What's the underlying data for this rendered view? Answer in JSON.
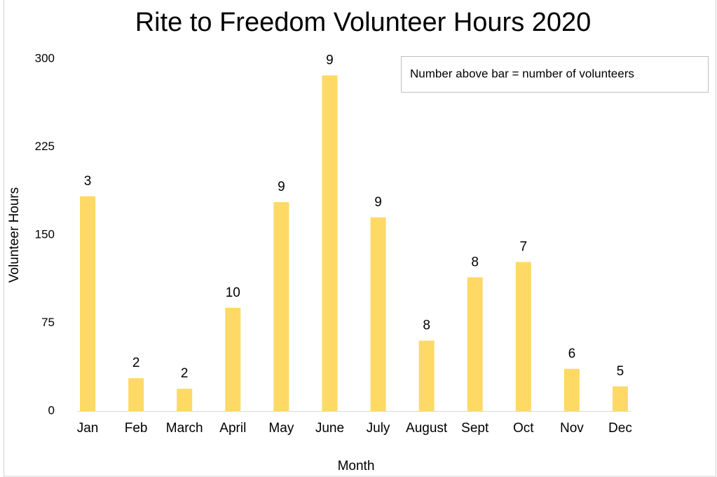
{
  "chart_data": {
    "type": "bar",
    "title": "Rite to Freedom Volunteer Hours 2020",
    "x_label": "Month",
    "y_label": "Volunteer Hours",
    "annotation": "Number above bar = number of volunteers",
    "categories": [
      "Jan",
      "Feb",
      "March",
      "April",
      "May",
      "June",
      "July",
      "August",
      "Sept",
      "Oct",
      "Nov",
      "Dec"
    ],
    "values": [
      183,
      28,
      19,
      88,
      178,
      286,
      165,
      60,
      114,
      127,
      36,
      21
    ],
    "volunteers": [
      3,
      2,
      2,
      10,
      9,
      9,
      9,
      8,
      8,
      7,
      6,
      5
    ],
    "color": "#ffd966",
    "ylim": [
      0,
      300
    ],
    "yticks": [
      0,
      75,
      150,
      225,
      300
    ],
    "grid": false
  }
}
